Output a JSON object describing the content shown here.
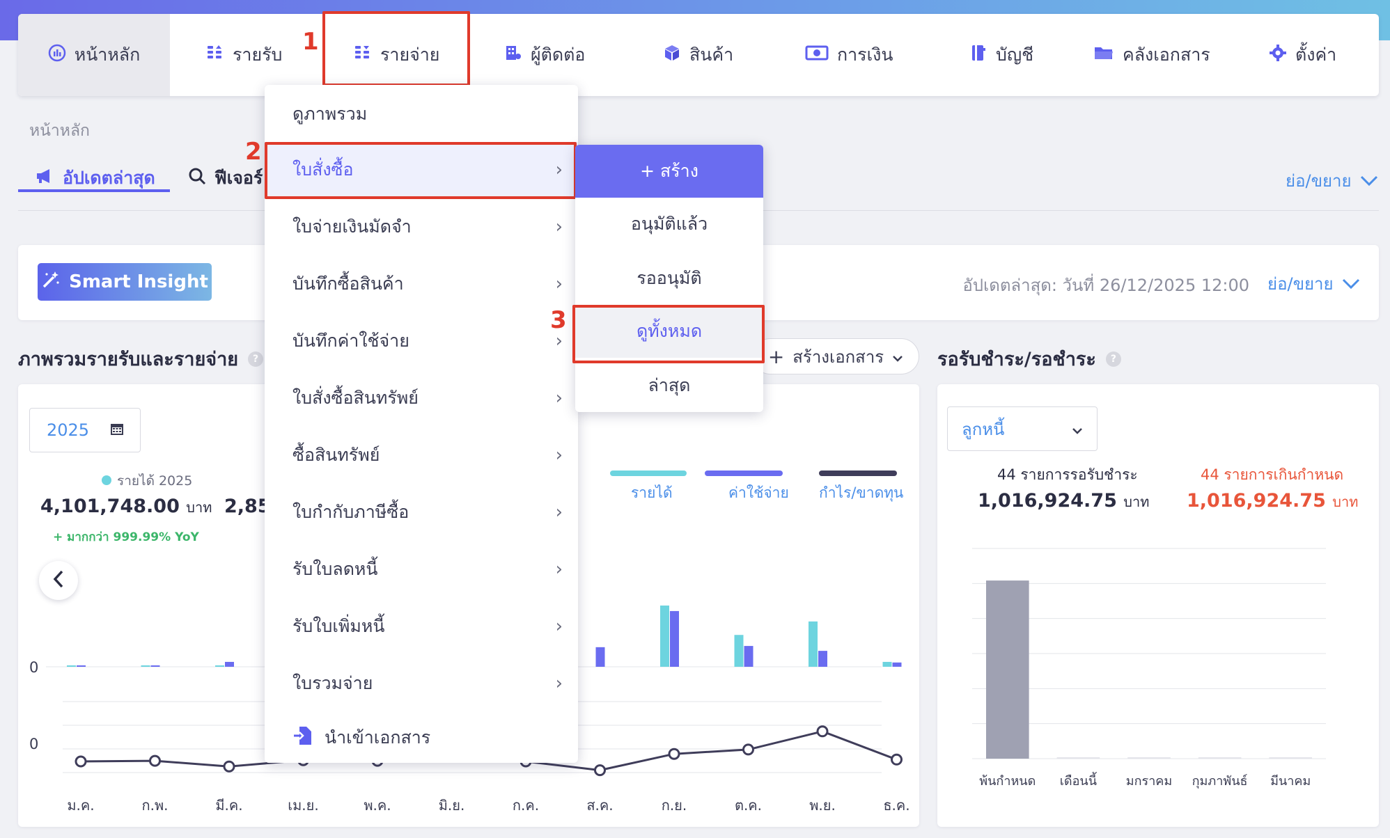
{
  "nav": {
    "items": [
      {
        "label": "หน้าหลัก",
        "icon": "dashboard-gauge-icon"
      },
      {
        "label": "รายรับ",
        "icon": "income-coins-icon"
      },
      {
        "label": "รายจ่าย",
        "icon": "expense-coins-icon"
      },
      {
        "label": "ผู้ติดต่อ",
        "icon": "contacts-building-icon"
      },
      {
        "label": "สินค้า",
        "icon": "product-box-icon"
      },
      {
        "label": "การเงิน",
        "icon": "money-bill-icon"
      },
      {
        "label": "บัญชี",
        "icon": "account-book-icon"
      },
      {
        "label": "คลังเอกสาร",
        "icon": "folder-icon"
      },
      {
        "label": "ตั้งค่า",
        "icon": "gear-icon"
      }
    ]
  },
  "annotations": {
    "step1": "1",
    "step2": "2",
    "step3": "3",
    "color": "#e03a2b"
  },
  "breadcrumb": "หน้าหลัก",
  "tabs": {
    "updates": "อัปเดตล่าสุด",
    "features": "ฟีเจอร์"
  },
  "expand_label": "ย่อ/ขยาย",
  "insight": {
    "button": "Smart Insight",
    "updated": "อัปเดตล่าสุด: วันที่ 26/12/2025 12:00",
    "expand": "ย่อ/ขยาย"
  },
  "overview": {
    "title": "ภาพรวมรายรับและรายจ่าย",
    "year": "2025",
    "revenue_legend": "รายได้ 2025",
    "revenue_amount": "4,101,748.00",
    "currency": "บาท",
    "partial_amount": "2,85",
    "yoy": "+ มากกว่า 999.99% YoY",
    "create_doc": "สร้างเอกสาร",
    "legend": {
      "income": "รายได้",
      "expense": "ค่าใช้จ่าย",
      "profit": "กำไร/ขาดทุน"
    },
    "zero_top": "0",
    "zero_bottom": "0"
  },
  "receivables": {
    "title": "รอรับชำระ/รอชำระ",
    "select": "ลูกหนี้",
    "pending_label": "44 รายการรอรับชำระ",
    "pending_amount": "1,016,924.75",
    "overdue_label": "44 รายการเกินกำหนด",
    "overdue_amount": "1,016,924.75",
    "currency": "บาท"
  },
  "menu": {
    "items": [
      {
        "label": "ดูภาพรวม",
        "chevron": ""
      },
      {
        "label": "ใบสั่งซื้อ",
        "chevron": "›"
      },
      {
        "label": "ใบจ่ายเงินมัดจำ",
        "chevron": "›"
      },
      {
        "label": "บันทึกซื้อสินค้า",
        "chevron": "›"
      },
      {
        "label": "บันทึกค่าใช้จ่าย",
        "chevron": "›"
      },
      {
        "label": "ใบสั่งซื้อสินทรัพย์",
        "chevron": "›"
      },
      {
        "label": "ซื้อสินทรัพย์",
        "chevron": "›"
      },
      {
        "label": "ใบกำกับภาษีซื้อ",
        "chevron": "›"
      },
      {
        "label": "รับใบลดหนี้",
        "chevron": "›"
      },
      {
        "label": "รับใบเพิ่มหนี้",
        "chevron": "›"
      },
      {
        "label": "ใบรวมจ่าย",
        "chevron": "›"
      },
      {
        "label": "นำเข้าเอกสาร",
        "chevron": ""
      }
    ],
    "submenu": {
      "create": "+ สร้าง",
      "items": [
        "อนุมัติแล้ว",
        "รออนุมัติ",
        "ดูทั้งหมด",
        "ล่าสุด"
      ]
    }
  },
  "chart_data": [
    {
      "type": "bar",
      "categories": [
        "ม.ค.",
        "ก.พ.",
        "มี.ค.",
        "เม.ย.",
        "พ.ค.",
        "มิ.ย.",
        "ก.ค.",
        "ส.ค.",
        "ก.ย.",
        "ต.ค.",
        "พ.ย.",
        "ธ.ค."
      ],
      "series": [
        {
          "name": "รายได้",
          "color": "#6dd4df",
          "values": [
            0.02,
            0.01,
            0.01,
            null,
            null,
            null,
            null,
            null,
            1.0,
            0.52,
            0.74,
            0.08
          ]
        },
        {
          "name": "ค่าใช้จ่าย",
          "color": "#6a6cf0",
          "values": [
            0.02,
            0.02,
            0.08,
            null,
            null,
            null,
            null,
            0.32,
            0.91,
            0.34,
            0.26,
            0.07
          ]
        }
      ],
      "xlabel": "",
      "ylabel": "",
      "note": "relative bar heights; first four months mostly hidden behind menu"
    },
    {
      "type": "line",
      "categories": [
        "ม.ค.",
        "ก.พ.",
        "มี.ค.",
        "เม.ย.",
        "พ.ค.",
        "มิ.ย.",
        "ก.ค.",
        "ส.ค.",
        "ก.ย.",
        "ต.ค.",
        "พ.ย.",
        "ธ.ค."
      ],
      "series": [
        {
          "name": "กำไร/ขาดทุน",
          "color": "#3f3d5a",
          "values": [
            0,
            0.01,
            -0.08,
            0.02,
            0.01,
            null,
            0,
            -0.14,
            0.12,
            0.19,
            0.48,
            0.03
          ]
        }
      ]
    },
    {
      "type": "bar",
      "categories": [
        "พ้นกำหนด",
        "เดือนนี้",
        "มกราคม",
        "กุมภาพันธ์",
        "มีนาคม"
      ],
      "series": [
        {
          "values": [
            1016924.75,
            0,
            0,
            0,
            0
          ],
          "color": "#9fa1b2"
        }
      ],
      "ylim": [
        0,
        1200000
      ]
    }
  ]
}
